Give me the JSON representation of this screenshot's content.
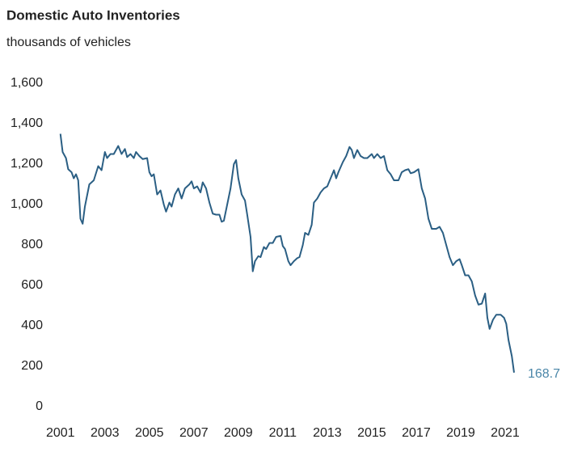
{
  "chart_data": {
    "type": "line",
    "title": "Domestic Auto Inventories",
    "subtitle": "thousands of vehicles",
    "color": "#2b5f84",
    "label_color": "#4a86a8",
    "grid": false,
    "xlim": [
      2000.9,
      2023.0
    ],
    "xticks": [
      2001,
      2003,
      2005,
      2007,
      2009,
      2011,
      2013,
      2015,
      2017,
      2019,
      2021
    ],
    "ylim": [
      0,
      1600
    ],
    "yticks": [
      0,
      200,
      400,
      600,
      800,
      {
        "value": 1000,
        "label": "1,000"
      },
      {
        "value": 1200,
        "label": "1,200"
      },
      {
        "value": 1400,
        "label": "1,400"
      },
      {
        "value": 1600,
        "label": "1,600"
      }
    ],
    "x": [
      2001.0,
      2001.1,
      2001.25,
      2001.35,
      2001.5,
      2001.6,
      2001.7,
      2001.8,
      2001.9,
      2002.0,
      2002.1,
      2002.3,
      2002.5,
      2002.7,
      2002.85,
      2003.0,
      2003.1,
      2003.25,
      2003.4,
      2003.6,
      2003.75,
      2003.9,
      2004.0,
      2004.15,
      2004.3,
      2004.4,
      2004.55,
      2004.7,
      2004.9,
      2005.0,
      2005.1,
      2005.2,
      2005.35,
      2005.5,
      2005.65,
      2005.75,
      2005.9,
      2006.0,
      2006.15,
      2006.3,
      2006.45,
      2006.6,
      2006.8,
      2006.9,
      2007.0,
      2007.15,
      2007.3,
      2007.4,
      2007.55,
      2007.7,
      2007.85,
      2008.0,
      2008.15,
      2008.25,
      2008.35,
      2008.5,
      2008.65,
      2008.8,
      2008.9,
      2009.0,
      2009.15,
      2009.3,
      2009.4,
      2009.55,
      2009.65,
      2009.75,
      2009.9,
      2010.0,
      2010.15,
      2010.25,
      2010.4,
      2010.55,
      2010.7,
      2010.9,
      2011.0,
      2011.1,
      2011.25,
      2011.35,
      2011.5,
      2011.65,
      2011.75,
      2011.9,
      2012.0,
      2012.15,
      2012.3,
      2012.4,
      2012.55,
      2012.7,
      2012.85,
      2013.0,
      2013.15,
      2013.3,
      2013.4,
      2013.5,
      2013.7,
      2013.85,
      2014.0,
      2014.1,
      2014.2,
      2014.35,
      2014.5,
      2014.65,
      2014.8,
      2015.0,
      2015.1,
      2015.25,
      2015.4,
      2015.55,
      2015.7,
      2015.85,
      2016.0,
      2016.2,
      2016.35,
      2016.5,
      2016.65,
      2016.75,
      2016.9,
      2017.1,
      2017.25,
      2017.4,
      2017.55,
      2017.7,
      2017.9,
      2018.05,
      2018.2,
      2018.35,
      2018.5,
      2018.65,
      2018.8,
      2018.95,
      2019.05,
      2019.2,
      2019.35,
      2019.5,
      2019.65,
      2019.8,
      2019.95,
      2020.1,
      2020.2,
      2020.3,
      2020.45,
      2020.6,
      2020.8,
      2020.95,
      2021.05,
      2021.15,
      2021.3,
      2021.4
    ],
    "values": [
      1350,
      1260,
      1230,
      1175,
      1160,
      1130,
      1150,
      1120,
      930,
      905,
      990,
      1100,
      1120,
      1190,
      1170,
      1260,
      1230,
      1250,
      1250,
      1290,
      1250,
      1275,
      1235,
      1250,
      1230,
      1260,
      1240,
      1225,
      1230,
      1160,
      1140,
      1150,
      1050,
      1070,
      1000,
      965,
      1010,
      990,
      1050,
      1080,
      1030,
      1080,
      1100,
      1115,
      1080,
      1090,
      1060,
      1110,
      1080,
      1010,
      955,
      950,
      950,
      915,
      920,
      1000,
      1080,
      1200,
      1220,
      1130,
      1050,
      1020,
      950,
      840,
      670,
      720,
      745,
      740,
      790,
      780,
      810,
      810,
      840,
      845,
      795,
      780,
      720,
      700,
      720,
      735,
      740,
      800,
      860,
      850,
      900,
      1010,
      1030,
      1060,
      1080,
      1090,
      1130,
      1170,
      1130,
      1160,
      1210,
      1240,
      1285,
      1270,
      1230,
      1270,
      1240,
      1230,
      1230,
      1250,
      1230,
      1250,
      1230,
      1240,
      1170,
      1150,
      1120,
      1120,
      1160,
      1170,
      1175,
      1155,
      1160,
      1175,
      1080,
      1030,
      930,
      880,
      880,
      890,
      860,
      800,
      740,
      700,
      720,
      730,
      700,
      650,
      650,
      620,
      550,
      505,
      510,
      560,
      440,
      385,
      430,
      455,
      455,
      440,
      410,
      330,
      250,
      168.7
    ]
  }
}
